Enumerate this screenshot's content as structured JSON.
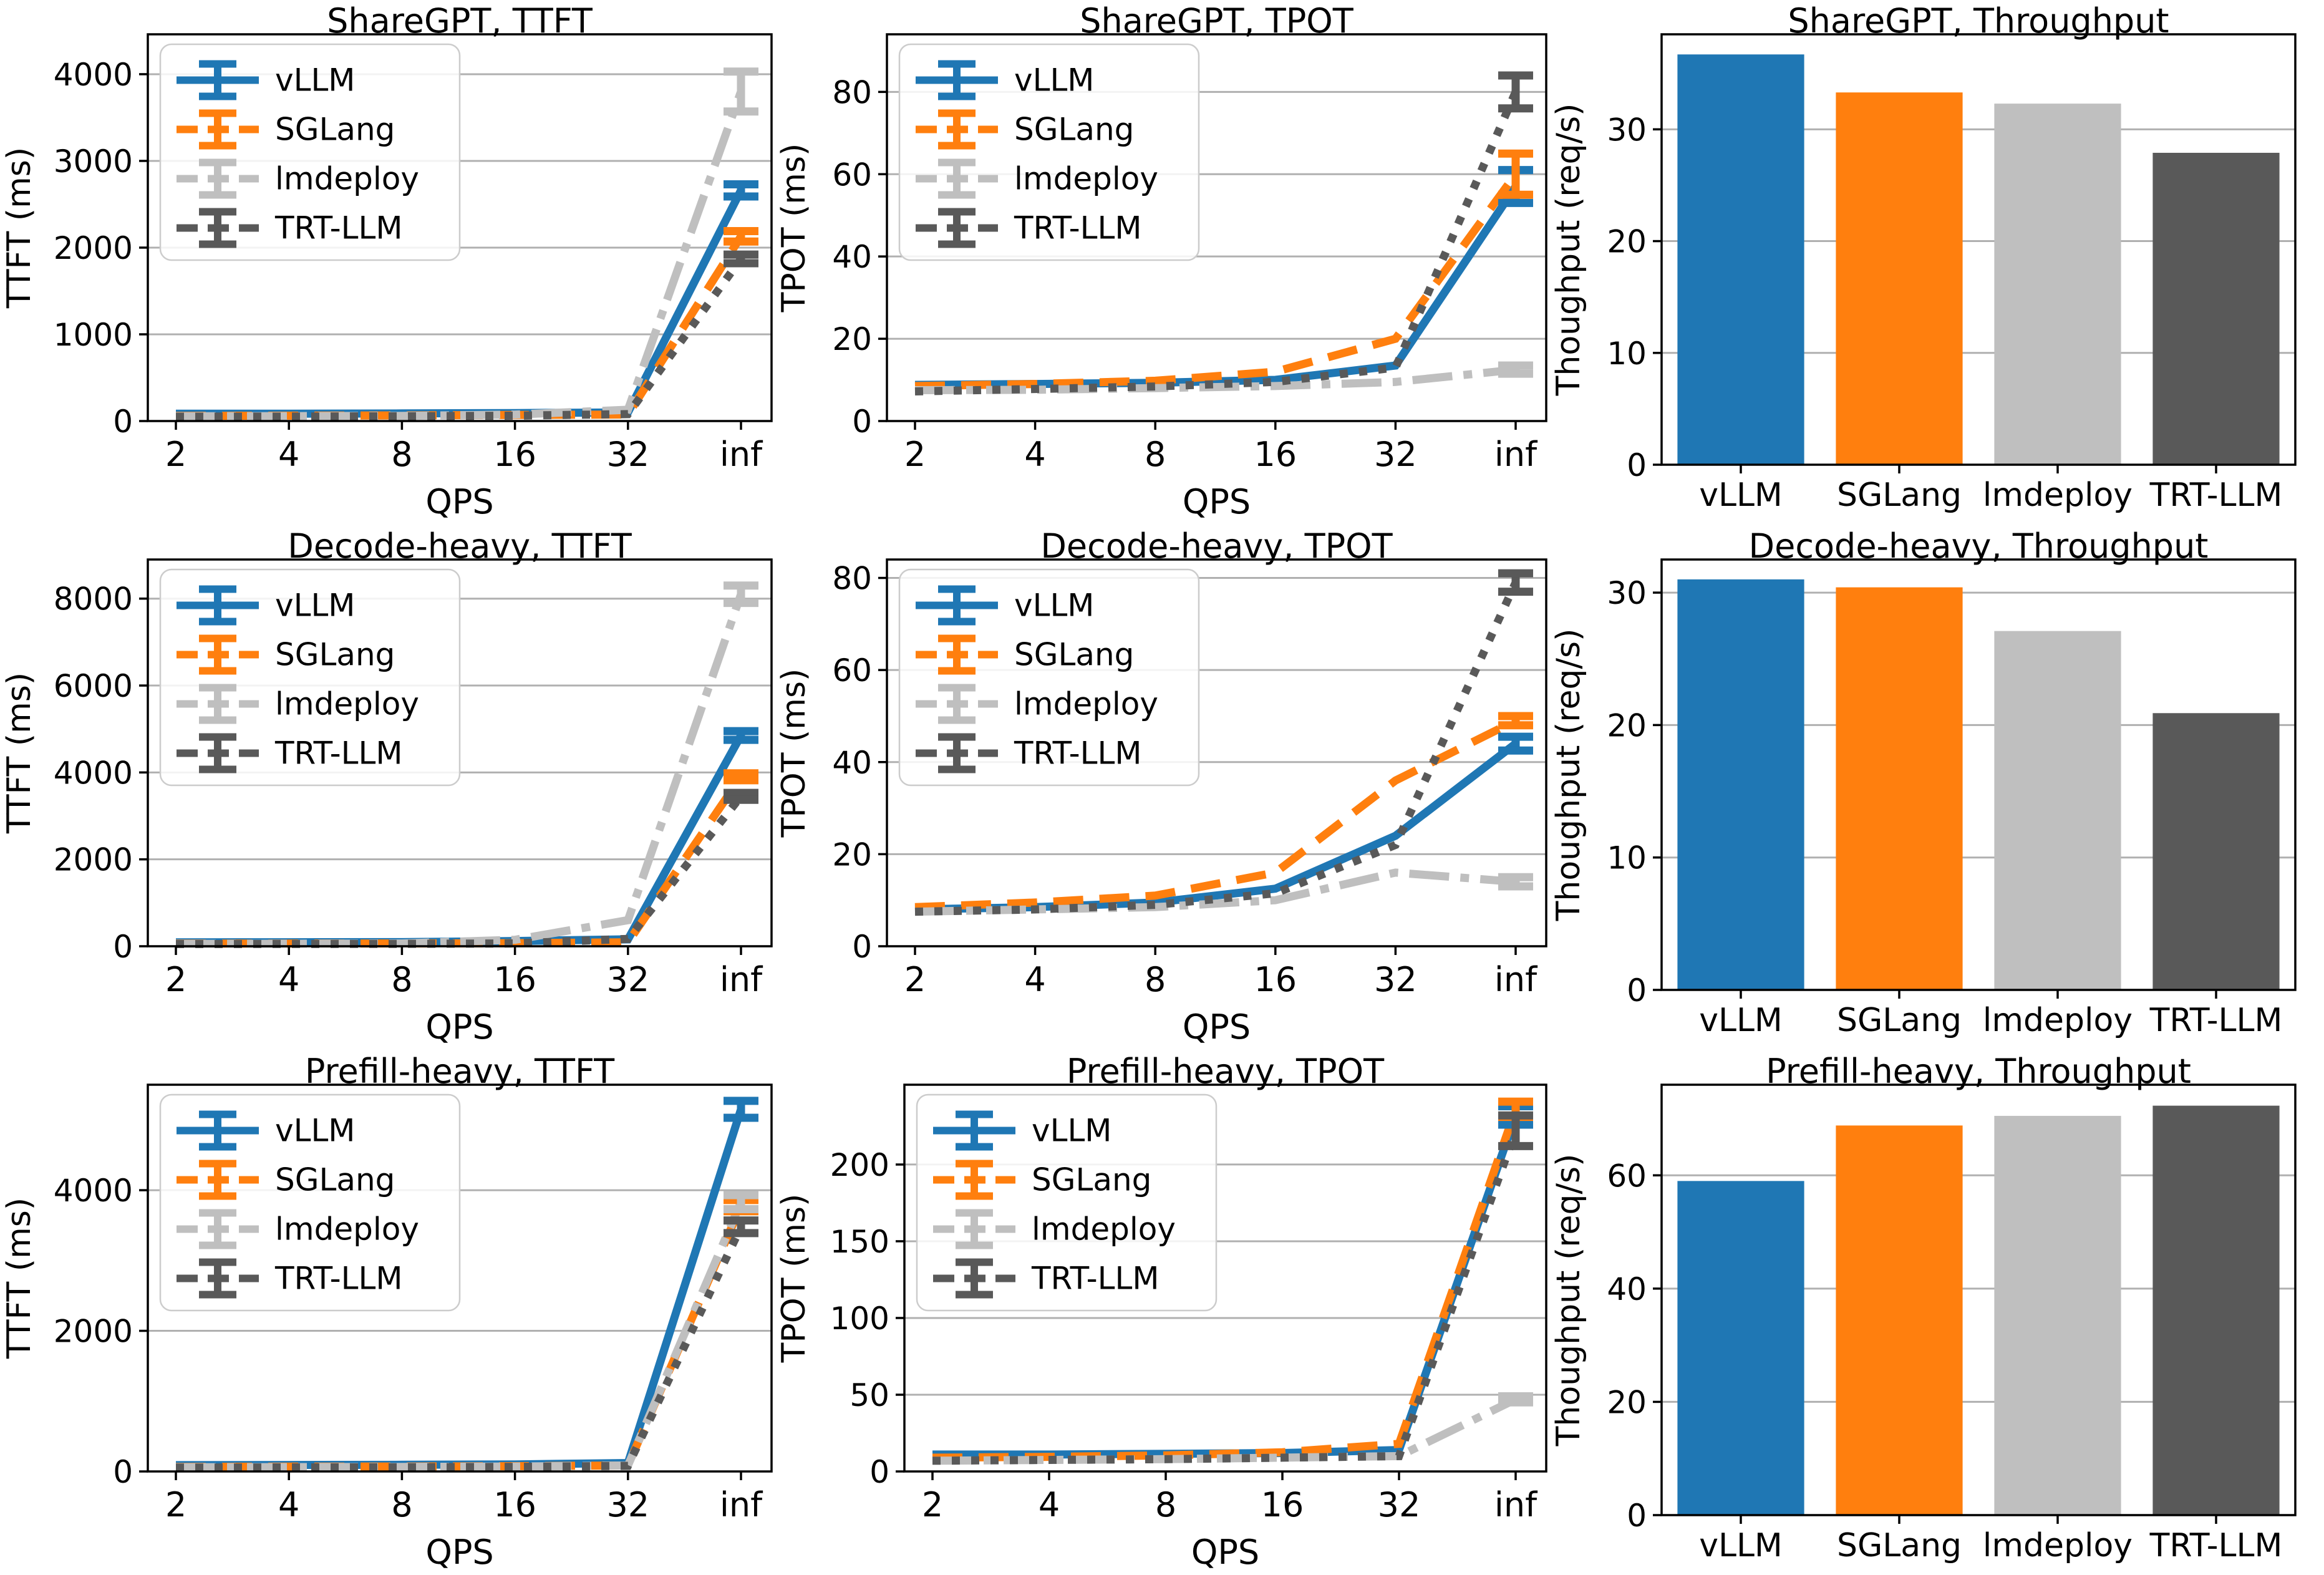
{
  "page": {
    "background": "#ffffff"
  },
  "colors": {
    "vllm": "#1f77b4",
    "sglang": "#ff7f0e",
    "lmdeploy": "#bfbfbf",
    "trtllm": "#595959",
    "grid": "#b0b0b0",
    "axis": "#000000",
    "legend_border": "#cccccc",
    "legend_bg": "rgba(255,255,255,0.85)"
  },
  "systems": [
    "vLLM",
    "SGLang",
    "lmdeploy",
    "TRT-LLM"
  ],
  "chart_data": [
    {
      "type": "line",
      "title": "ShareGPT, TTFT",
      "xlabel": "QPS",
      "ylabel": "TTFT (ms)",
      "x_ticklabels": [
        "2",
        "4",
        "8",
        "16",
        "32",
        "inf"
      ],
      "yticks": [
        0,
        1000,
        2000,
        3000,
        4000
      ],
      "ymax": 4460,
      "grid": true,
      "legend_position": "upper-left",
      "series": [
        {
          "name": "vLLM",
          "color_key": "vllm",
          "style": "solid",
          "values": [
            85,
            85,
            88,
            92,
            100,
            2660
          ],
          "err_inf": 70
        },
        {
          "name": "SGLang",
          "color_key": "sglang",
          "style": "dashed",
          "values": [
            60,
            62,
            65,
            70,
            75,
            2130
          ],
          "err_inf": 60
        },
        {
          "name": "lmdeploy",
          "color_key": "lmdeploy",
          "style": "dashdot",
          "values": [
            55,
            57,
            60,
            75,
            130,
            3800
          ],
          "err_inf": 230
        },
        {
          "name": "TRT-LLM",
          "color_key": "trtllm",
          "style": "dotted",
          "values": [
            50,
            52,
            55,
            62,
            80,
            1870
          ],
          "err_inf": 50
        }
      ]
    },
    {
      "type": "line",
      "title": "ShareGPT, TPOT",
      "xlabel": "QPS",
      "ylabel": "TPOT (ms)",
      "x_ticklabels": [
        "2",
        "4",
        "8",
        "16",
        "32",
        "inf"
      ],
      "yticks": [
        0,
        20,
        40,
        60,
        80
      ],
      "ymax": 94,
      "grid": true,
      "legend_position": "upper-left",
      "series": [
        {
          "name": "vLLM",
          "color_key": "vllm",
          "style": "solid",
          "values": [
            8.8,
            9,
            9.3,
            10,
            13.5,
            57
          ],
          "err_inf": 4
        },
        {
          "name": "SGLang",
          "color_key": "sglang",
          "style": "dashed",
          "values": [
            8.5,
            9,
            9.8,
            12,
            20,
            60
          ],
          "err_inf": 5
        },
        {
          "name": "lmdeploy",
          "color_key": "lmdeploy",
          "style": "dashdot",
          "values": [
            7.5,
            7.6,
            8,
            8.5,
            9.5,
            12.5
          ],
          "err_inf": 1
        },
        {
          "name": "TRT-LLM",
          "color_key": "trtllm",
          "style": "dotted",
          "values": [
            7.2,
            7.8,
            8.4,
            9.5,
            13,
            80
          ],
          "err_inf": 4
        }
      ]
    },
    {
      "type": "bar",
      "title": "ShareGPT, Throughput",
      "ylabel": "Thoughput (req/s)",
      "categories": [
        "vLLM",
        "SGLang",
        "lmdeploy",
        "TRT-LLM"
      ],
      "values": [
        36.7,
        33.3,
        32.3,
        27.9
      ],
      "yticks": [
        0,
        10,
        20,
        30
      ],
      "ymax": 38.5,
      "grid": true,
      "bar_color_keys": [
        "vllm",
        "sglang",
        "lmdeploy",
        "trtllm"
      ]
    },
    {
      "type": "line",
      "title": "Decode-heavy, TTFT",
      "xlabel": "QPS",
      "ylabel": "TTFT (ms)",
      "x_ticklabels": [
        "2",
        "4",
        "8",
        "16",
        "32",
        "inf"
      ],
      "yticks": [
        0,
        2000,
        4000,
        6000,
        8000
      ],
      "ymax": 8900,
      "grid": true,
      "legend_position": "upper-left",
      "series": [
        {
          "name": "vLLM",
          "color_key": "vllm",
          "style": "solid",
          "values": [
            90,
            92,
            95,
            120,
            160,
            4850
          ],
          "err_inf": 100
        },
        {
          "name": "SGLang",
          "color_key": "sglang",
          "style": "dashed",
          "values": [
            60,
            62,
            65,
            70,
            90,
            3900
          ],
          "err_inf": 80
        },
        {
          "name": "lmdeploy",
          "color_key": "lmdeploy",
          "style": "dashdot",
          "values": [
            55,
            58,
            65,
            150,
            600,
            8100
          ],
          "err_inf": 200
        },
        {
          "name": "TRT-LLM",
          "color_key": "trtllm",
          "style": "dotted",
          "values": [
            50,
            52,
            55,
            65,
            170,
            3450
          ],
          "err_inf": 80
        }
      ]
    },
    {
      "type": "line",
      "title": "Decode-heavy, TPOT",
      "xlabel": "QPS",
      "ylabel": "TPOT (ms)",
      "x_ticklabels": [
        "2",
        "4",
        "8",
        "16",
        "32",
        "inf"
      ],
      "yticks": [
        0,
        20,
        40,
        60,
        80
      ],
      "ymax": 84,
      "grid": true,
      "legend_position": "upper-left",
      "series": [
        {
          "name": "vLLM",
          "color_key": "vllm",
          "style": "solid",
          "values": [
            8,
            8.5,
            9.5,
            12.5,
            24,
            44
          ],
          "err_inf": 1.5
        },
        {
          "name": "SGLang",
          "color_key": "sglang",
          "style": "dashed",
          "values": [
            8.5,
            9.5,
            11,
            16,
            36,
            49
          ],
          "err_inf": 1
        },
        {
          "name": "lmdeploy",
          "color_key": "lmdeploy",
          "style": "dashdot",
          "values": [
            7.5,
            8,
            8.5,
            10,
            16,
            14
          ],
          "err_inf": 1
        },
        {
          "name": "TRT-LLM",
          "color_key": "trtllm",
          "style": "dotted",
          "values": [
            7.5,
            8,
            9,
            11.5,
            22,
            79
          ],
          "err_inf": 2
        }
      ]
    },
    {
      "type": "bar",
      "title": "Decode-heavy, Throughput",
      "ylabel": "Thoughput (req/s)",
      "categories": [
        "vLLM",
        "SGLang",
        "lmdeploy",
        "TRT-LLM"
      ],
      "values": [
        31.0,
        30.4,
        27.1,
        20.9
      ],
      "yticks": [
        0,
        10,
        20,
        30
      ],
      "ymax": 32.5,
      "grid": true,
      "bar_color_keys": [
        "vllm",
        "sglang",
        "lmdeploy",
        "trtllm"
      ]
    },
    {
      "type": "line",
      "title": "Prefill-heavy, TTFT",
      "xlabel": "QPS",
      "ylabel": "TTFT (ms)",
      "x_ticklabels": [
        "2",
        "4",
        "8",
        "16",
        "32",
        "inf"
      ],
      "yticks": [
        0,
        2000,
        4000
      ],
      "ymax": 5500,
      "grid": true,
      "legend_position": "upper-left",
      "series": [
        {
          "name": "vLLM",
          "color_key": "vllm",
          "style": "solid",
          "values": [
            90,
            92,
            95,
            100,
            120,
            5150
          ],
          "err_inf": 120
        },
        {
          "name": "SGLang",
          "color_key": "sglang",
          "style": "dashed",
          "values": [
            65,
            68,
            70,
            75,
            85,
            3780
          ],
          "err_inf": 80
        },
        {
          "name": "lmdeploy",
          "color_key": "lmdeploy",
          "style": "dashdot",
          "values": [
            60,
            62,
            65,
            70,
            85,
            3830
          ],
          "err_inf": 100
        },
        {
          "name": "TRT-LLM",
          "color_key": "trtllm",
          "style": "dotted",
          "values": [
            55,
            58,
            60,
            65,
            80,
            3480
          ],
          "err_inf": 90
        }
      ]
    },
    {
      "type": "line",
      "title": "Prefill-heavy, TPOT",
      "xlabel": "QPS",
      "ylabel": "TPOT (ms)",
      "x_ticklabels": [
        "2",
        "4",
        "8",
        "16",
        "32",
        "inf"
      ],
      "yticks": [
        0,
        50,
        100,
        150,
        200
      ],
      "ymax": 252,
      "grid": true,
      "legend_position": "upper-left",
      "series": [
        {
          "name": "vLLM",
          "color_key": "vllm",
          "style": "solid",
          "values": [
            11,
            11,
            11.5,
            12,
            14,
            232
          ],
          "err_inf": 6
        },
        {
          "name": "SGLang",
          "color_key": "sglang",
          "style": "dashed",
          "values": [
            9,
            9.5,
            10.5,
            12.5,
            18,
            236
          ],
          "err_inf": 5
        },
        {
          "name": "lmdeploy",
          "color_key": "lmdeploy",
          "style": "dashdot",
          "values": [
            7,
            7.5,
            8,
            9,
            10,
            47
          ],
          "err_inf": 2
        },
        {
          "name": "TRT-LLM",
          "color_key": "trtllm",
          "style": "dotted",
          "values": [
            7,
            7.5,
            8,
            9,
            10,
            222
          ],
          "err_inf": 10
        }
      ]
    },
    {
      "type": "bar",
      "title": "Prefill-heavy, Throughput",
      "ylabel": "Thoughput (req/s)",
      "categories": [
        "vLLM",
        "SGLang",
        "lmdeploy",
        "TRT-LLM"
      ],
      "values": [
        59.0,
        68.8,
        70.5,
        72.3
      ],
      "yticks": [
        0,
        20,
        40,
        60
      ],
      "ymax": 76,
      "grid": true,
      "bar_color_keys": [
        "vllm",
        "sglang",
        "lmdeploy",
        "trtllm"
      ]
    }
  ]
}
